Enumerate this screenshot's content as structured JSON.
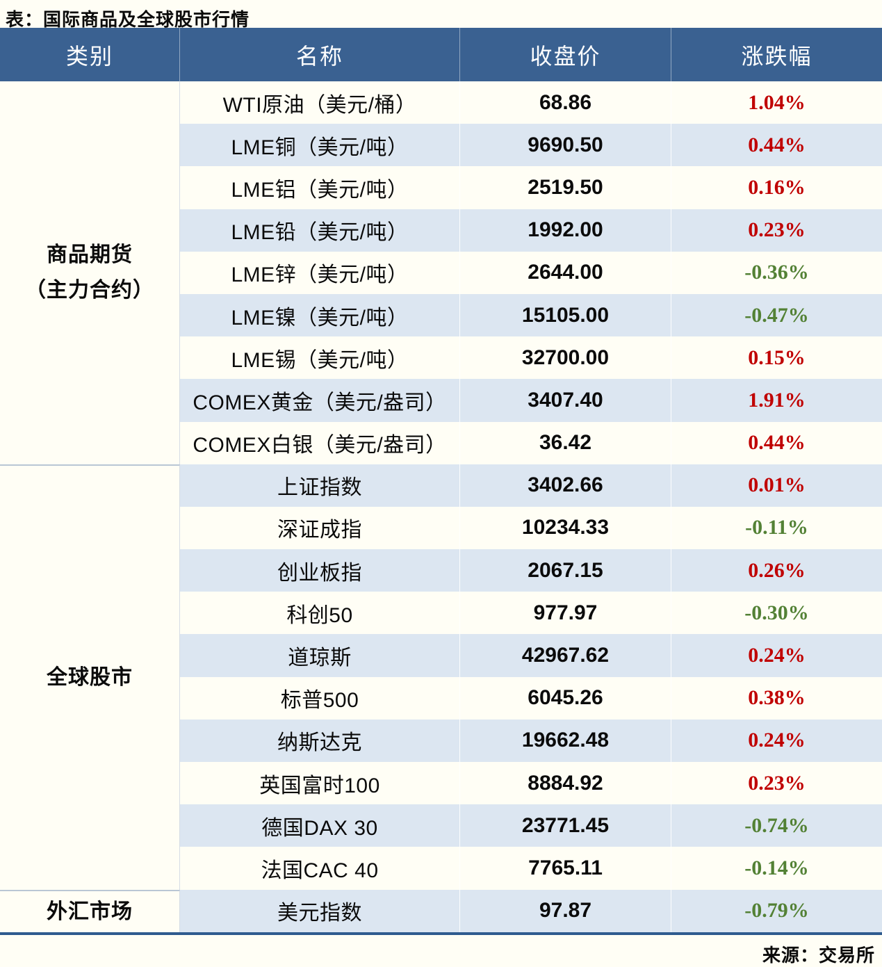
{
  "chart_data": {
    "type": "table",
    "title": "表：国际商品及全球股市行情",
    "source": "来源：交易所",
    "columns": [
      "类别",
      "名称",
      "收盘价",
      "涨跌幅"
    ],
    "groups": [
      {
        "category": "商品期货（主力合约）",
        "category_lines": "商品期货\n（主力合约）",
        "rows": [
          {
            "name": "WTI原油（美元/桶）",
            "close": "68.86",
            "change": "1.04%"
          },
          {
            "name": "LME铜（美元/吨）",
            "close": "9690.50",
            "change": "0.44%"
          },
          {
            "name": "LME铝（美元/吨）",
            "close": "2519.50",
            "change": "0.16%"
          },
          {
            "name": "LME铅（美元/吨）",
            "close": "1992.00",
            "change": "0.23%"
          },
          {
            "name": "LME锌（美元/吨）",
            "close": "2644.00",
            "change": "-0.36%"
          },
          {
            "name": "LME镍（美元/吨）",
            "close": "15105.00",
            "change": "-0.47%"
          },
          {
            "name": "LME锡（美元/吨）",
            "close": "32700.00",
            "change": "0.15%"
          },
          {
            "name": "COMEX黄金（美元/盎司）",
            "close": "3407.40",
            "change": "1.91%"
          },
          {
            "name": "COMEX白银（美元/盎司）",
            "close": "36.42",
            "change": "0.44%"
          }
        ]
      },
      {
        "category": "全球股市",
        "category_lines": "全球股市",
        "rows": [
          {
            "name": "上证指数",
            "close": "3402.66",
            "change": "0.01%"
          },
          {
            "name": "深证成指",
            "close": "10234.33",
            "change": "-0.11%"
          },
          {
            "name": "创业板指",
            "close": "2067.15",
            "change": "0.26%"
          },
          {
            "name": "科创50",
            "close": "977.97",
            "change": "-0.30%"
          },
          {
            "name": "道琼斯",
            "close": "42967.62",
            "change": "0.24%"
          },
          {
            "name": "标普500",
            "close": "6045.26",
            "change": "0.38%"
          },
          {
            "name": "纳斯达克",
            "close": "19662.48",
            "change": "0.24%"
          },
          {
            "name": "英国富时100",
            "close": "8884.92",
            "change": "0.23%"
          },
          {
            "name": "德国DAX 30",
            "close": "23771.45",
            "change": "-0.74%"
          },
          {
            "name": "法国CAC 40",
            "close": "7765.11",
            "change": "-0.14%"
          }
        ]
      },
      {
        "category": "外汇市场",
        "category_lines": "外汇市场",
        "rows": [
          {
            "name": "美元指数",
            "close": "97.87",
            "change": "-0.79%"
          }
        ]
      }
    ]
  },
  "colors": {
    "page_bg": "#FFFEF5",
    "header_bg": "#3A6191",
    "header_text": "#FFFFFF",
    "row_alt_bg": "#DCE6F1",
    "text": "#0B0B0B",
    "positive_red": "#C00000",
    "negative_green": "#538135",
    "table_bottom_border": "#2F5B8F",
    "section_divider": "#B9C6D4"
  }
}
